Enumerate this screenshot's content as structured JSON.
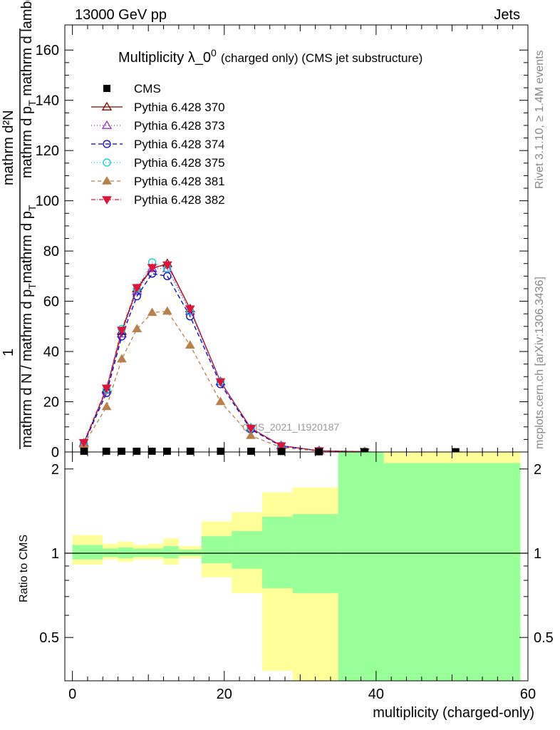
{
  "header": {
    "left": "13000 GeV pp",
    "right": "Jets"
  },
  "side_labels": {
    "rivet": "Rivet 3.1.10, ≥ 1.4M events",
    "mcplots": "mcplots.cern.ch [arXiv:1306.3436]"
  },
  "watermark": "CMS_2021_I1920187",
  "chart_data": [
    {
      "type": "line",
      "title": "Multiplicity λ_0",
      "title_sup": "0",
      "subtitle": "(charged only) (CMS jet substructure)",
      "ylabel_num": "1",
      "ylabel_den": "mathrm d N / mathrm d p_T mathrm d p_T mathrm d lambda",
      "ylabel_top": "mathrm d²N",
      "ylim": [
        0,
        170
      ],
      "yticks": [
        0,
        20,
        40,
        60,
        80,
        100,
        120,
        140,
        160
      ],
      "xlim": [
        -1,
        60
      ],
      "grid": false,
      "legend": "top-left",
      "data_series": {
        "name": "CMS",
        "x": [
          1.5,
          4.5,
          6.5,
          8.5,
          10.5,
          12.5,
          15.5,
          19.5,
          23.5,
          27.5,
          32.5,
          38.5,
          50.5
        ],
        "y": [
          0.3,
          0.3,
          0.3,
          0.3,
          0.3,
          0.3,
          0.3,
          0.3,
          0.3,
          0.2,
          0.1,
          0.1,
          0.1
        ]
      },
      "series": [
        {
          "name": "Pythia 6.428 370",
          "color": "#8b0000",
          "marker": "triangle-up-open",
          "dash": "solid",
          "x": [
            1.5,
            4.5,
            6.5,
            8.5,
            10.5,
            12.5,
            15.5,
            19.5,
            23.5,
            27.5,
            32.5,
            38.5
          ],
          "y": [
            3.5,
            25,
            48,
            65,
            73,
            75,
            57,
            28,
            9.5,
            2.5,
            0.5,
            0.1
          ]
        },
        {
          "name": "Pythia 6.428 373",
          "color": "#9932cc",
          "marker": "triangle-up-open",
          "dash": "1,3",
          "x": [
            1.5,
            4.5,
            6.5,
            8.5,
            10.5,
            12.5,
            15.5,
            19.5,
            23.5,
            27.5,
            32.5,
            38.5
          ],
          "y": [
            3.5,
            24.5,
            47,
            64,
            73,
            73,
            56,
            28,
            9.5,
            2.5,
            0.5,
            0.1
          ]
        },
        {
          "name": "Pythia 6.428 374",
          "color": "#0000cd",
          "marker": "circle-open",
          "dash": "6,4",
          "x": [
            1.5,
            4.5,
            6.5,
            8.5,
            10.5,
            12.5,
            15.5,
            19.5,
            23.5,
            27.5,
            32.5,
            38.5
          ],
          "y": [
            3.3,
            23.5,
            46,
            62,
            71,
            70,
            54,
            27,
            9,
            2.3,
            0.5,
            0.1
          ]
        },
        {
          "name": "Pythia 6.428 375",
          "color": "#00ced1",
          "marker": "circle-open",
          "dash": "1,3",
          "x": [
            1.5,
            4.5,
            6.5,
            8.5,
            10.5,
            12.5,
            15.5,
            19.5,
            23.5,
            27.5,
            32.5,
            38.5
          ],
          "y": [
            3.6,
            25,
            49,
            65,
            75.5,
            73,
            56,
            28,
            9.5,
            2.5,
            0.5,
            0.1
          ]
        },
        {
          "name": "Pythia 6.428 381",
          "color": "#b8804a",
          "marker": "triangle-up-filled",
          "dash": "5,4",
          "x": [
            1.5,
            4.5,
            6.5,
            8.5,
            10.5,
            12.5,
            15.5,
            19.5,
            23.5,
            27.5,
            32.5,
            38.5
          ],
          "y": [
            3,
            18,
            37,
            49,
            55.5,
            56,
            42.5,
            20,
            6.5,
            1.8,
            0.3,
            0.05
          ]
        },
        {
          "name": "Pythia 6.428 382",
          "color": "#dc143c",
          "marker": "triangle-down-filled",
          "dash": "6,2,1,2",
          "x": [
            1.5,
            4.5,
            6.5,
            8.5,
            10.5,
            12.5,
            15.5,
            19.5,
            23.5,
            27.5,
            32.5,
            38.5
          ],
          "y": [
            3.8,
            25.5,
            48.5,
            65.5,
            73.5,
            74.5,
            57,
            28,
            9.5,
            2.5,
            0.5,
            0.1
          ]
        }
      ]
    },
    {
      "type": "area",
      "ylabel": "Ratio to CMS",
      "xlabel": "multiplicity (charged-only)",
      "xlim": [
        -1,
        60
      ],
      "ylim": [
        0.35,
        2.3
      ],
      "yticks": [
        0.5,
        1,
        2
      ],
      "xticks": [
        0,
        20,
        40,
        60
      ],
      "reference_line": 1,
      "bands": {
        "bins": [
          [
            0,
            4
          ],
          [
            4,
            6
          ],
          [
            6,
            8
          ],
          [
            8,
            10
          ],
          [
            10,
            12
          ],
          [
            12,
            14
          ],
          [
            14,
            17
          ],
          [
            17,
            21
          ],
          [
            21,
            25
          ],
          [
            25,
            29
          ],
          [
            29,
            35
          ],
          [
            35,
            41
          ],
          [
            41,
            59
          ]
        ],
        "green_lo": [
          0.95,
          0.97,
          0.96,
          0.97,
          0.97,
          0.96,
          0.98,
          0.92,
          0.88,
          0.75,
          0.72,
          0.3,
          0.3
        ],
        "green_hi": [
          1.07,
          1.04,
          1.05,
          1.04,
          1.04,
          1.06,
          1.03,
          1.15,
          1.2,
          1.35,
          1.38,
          2.4,
          2.1
        ],
        "yellow_lo": [
          0.91,
          0.95,
          0.93,
          0.95,
          0.95,
          0.91,
          0.96,
          0.82,
          0.72,
          0.38,
          0.3,
          0.3,
          0.3
        ],
        "yellow_hi": [
          1.16,
          1.08,
          1.1,
          1.07,
          1.08,
          1.13,
          1.06,
          1.3,
          1.4,
          1.65,
          1.72,
          2.4,
          2.4
        ]
      }
    }
  ]
}
